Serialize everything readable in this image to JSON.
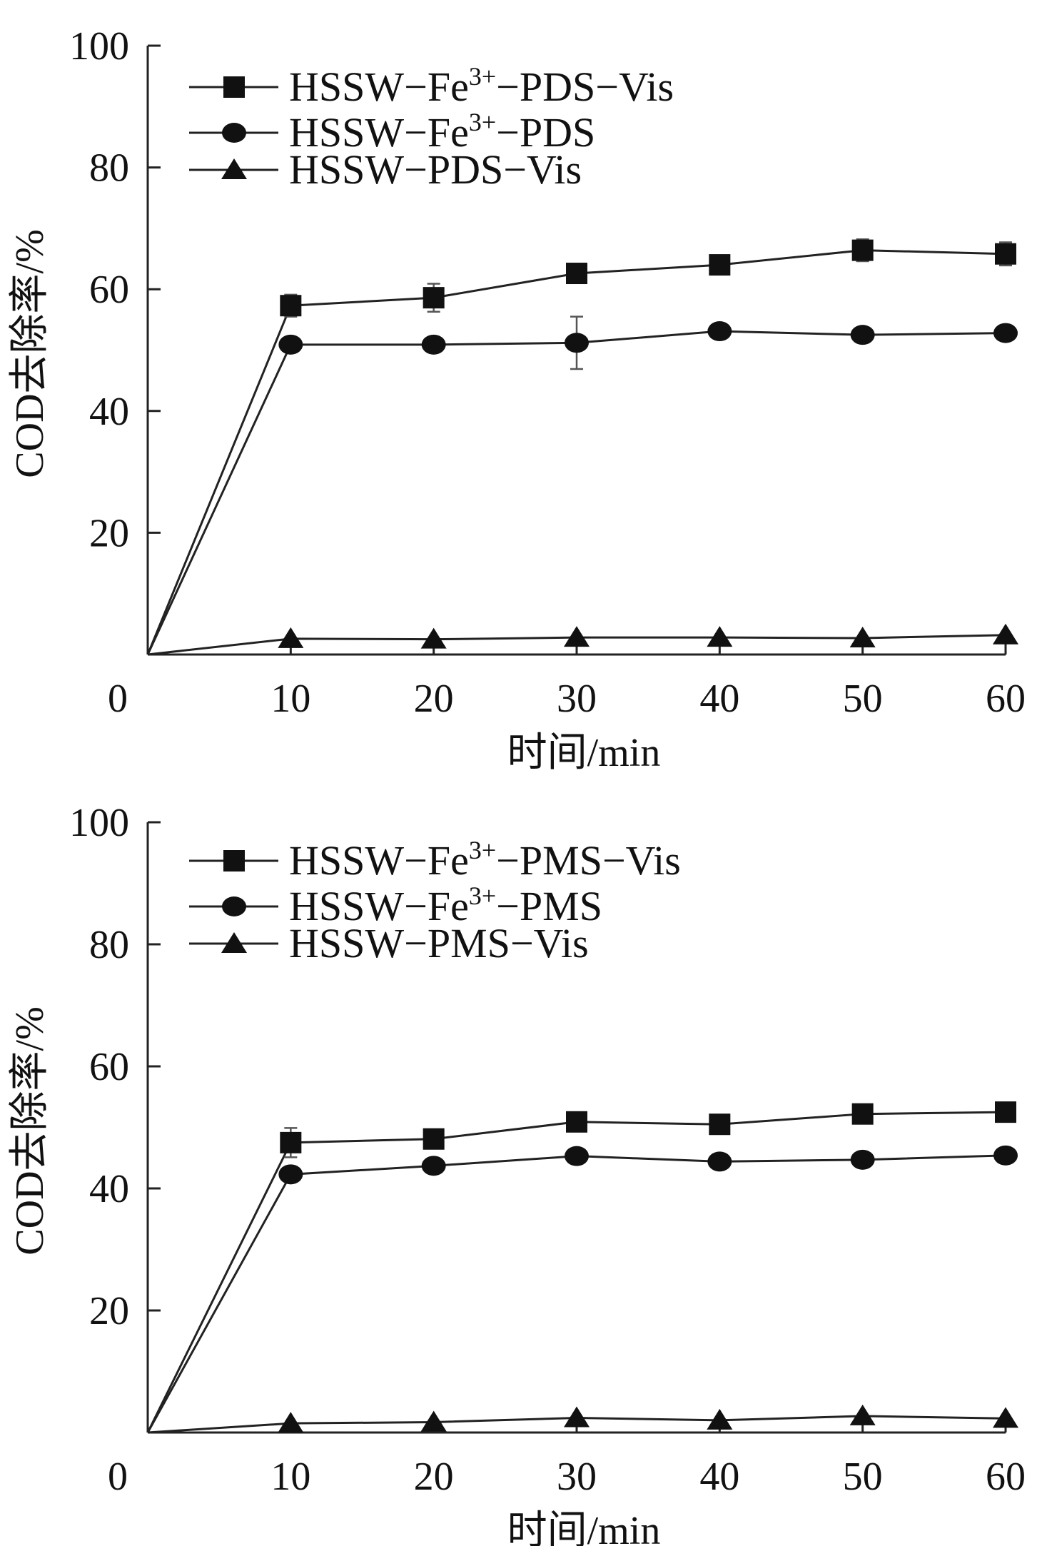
{
  "chart_data": [
    {
      "type": "line",
      "title": "",
      "xlabel": "时间/min",
      "ylabel": "COD去除率/%",
      "x": [
        0,
        10,
        20,
        30,
        40,
        50,
        60
      ],
      "xlim": [
        0,
        60
      ],
      "ylim": [
        0,
        100
      ],
      "x_ticks": [
        "0",
        "10",
        "20",
        "30",
        "40",
        "50",
        "60"
      ],
      "y_ticks": [
        "20",
        "40",
        "60",
        "80",
        "100"
      ],
      "legend_position": "top-left",
      "series": [
        {
          "name_main": "HSSW−Fe",
          "name_sup": "3+",
          "name_tail": "−PDS−Vis",
          "marker": "square",
          "values": [
            0,
            57.3,
            58.6,
            62.6,
            64.0,
            66.4,
            65.8
          ],
          "errors": [
            0,
            1.8,
            2.3,
            1.0,
            0.6,
            1.8,
            1.9
          ]
        },
        {
          "name_main": "HSSW−Fe",
          "name_sup": "3+",
          "name_tail": "−PDS",
          "marker": "circle",
          "values": [
            0,
            50.9,
            50.9,
            51.2,
            53.1,
            52.5,
            52.8
          ],
          "errors": [
            0,
            0.6,
            0.6,
            4.3,
            0.6,
            0.6,
            0.5
          ]
        },
        {
          "name_main": "HSSW−PDS−Vis",
          "name_sup": "",
          "name_tail": "",
          "marker": "triangle",
          "values": [
            0,
            2.6,
            2.5,
            2.8,
            2.8,
            2.7,
            3.2
          ],
          "errors": [
            0,
            0,
            0,
            0,
            0,
            0,
            0
          ]
        }
      ]
    },
    {
      "type": "line",
      "title": "",
      "xlabel": "时间/min",
      "ylabel": "COD去除率/%",
      "x": [
        0,
        10,
        20,
        30,
        40,
        50,
        60
      ],
      "xlim": [
        0,
        60
      ],
      "ylim": [
        0,
        100
      ],
      "x_ticks": [
        "0",
        "10",
        "20",
        "30",
        "40",
        "50",
        "60"
      ],
      "y_ticks": [
        "20",
        "40",
        "60",
        "80",
        "100"
      ],
      "legend_position": "top-left",
      "series": [
        {
          "name_main": "HSSW−Fe",
          "name_sup": "3+",
          "name_tail": "−PMS−Vis",
          "marker": "square",
          "values": [
            0,
            47.5,
            48.1,
            50.9,
            50.5,
            52.2,
            52.5
          ],
          "errors": [
            0,
            2.4,
            0.5,
            0.6,
            0.6,
            0.6,
            1.1
          ]
        },
        {
          "name_main": "HSSW−Fe",
          "name_sup": "3+",
          "name_tail": "−PMS",
          "marker": "circle",
          "values": [
            0,
            42.3,
            43.7,
            45.3,
            44.4,
            44.7,
            45.4
          ],
          "errors": [
            0,
            0.6,
            0.6,
            0.6,
            0.6,
            0.6,
            0.6
          ]
        },
        {
          "name_main": "HSSW−PMS−Vis",
          "name_sup": "",
          "name_tail": "",
          "marker": "triangle",
          "values": [
            0,
            1.5,
            1.7,
            2.4,
            2.0,
            2.7,
            2.3
          ],
          "errors": [
            0,
            0,
            0,
            0,
            0,
            0,
            0
          ]
        }
      ]
    }
  ]
}
